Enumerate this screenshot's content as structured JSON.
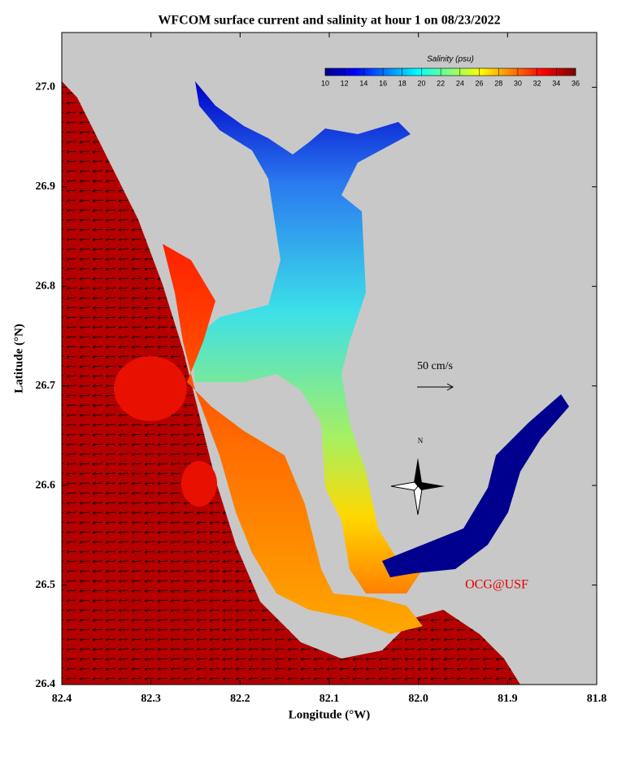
{
  "map": {
    "title": "WFCOM surface current and salinity at hour 1 on 08/23/2022",
    "x_label": "Longitude (°W)",
    "y_label": "Latitude (°N)",
    "xlim": [
      82.4,
      81.8
    ],
    "ylim": [
      26.4,
      27.055
    ],
    "xticks": [
      82.4,
      82.3,
      82.2,
      82.1,
      {
        "value": 82,
        "label": "82.0"
      },
      81.9,
      81.8
    ],
    "yticks": [
      26.4,
      26.5,
      26.6,
      26.7,
      26.8,
      26.9,
      {
        "value": 27,
        "label": "27.0"
      }
    ],
    "colorbar": {
      "label": "Salinity (psu)",
      "lim": [
        10,
        36
      ],
      "ticks": [
        10,
        12,
        14,
        16,
        18,
        20,
        22,
        24,
        26,
        28,
        30,
        32,
        34,
        36
      ]
    },
    "scale_label": "50 cm/s",
    "compass_label": "N",
    "watermark": "OCG@USF"
  }
}
